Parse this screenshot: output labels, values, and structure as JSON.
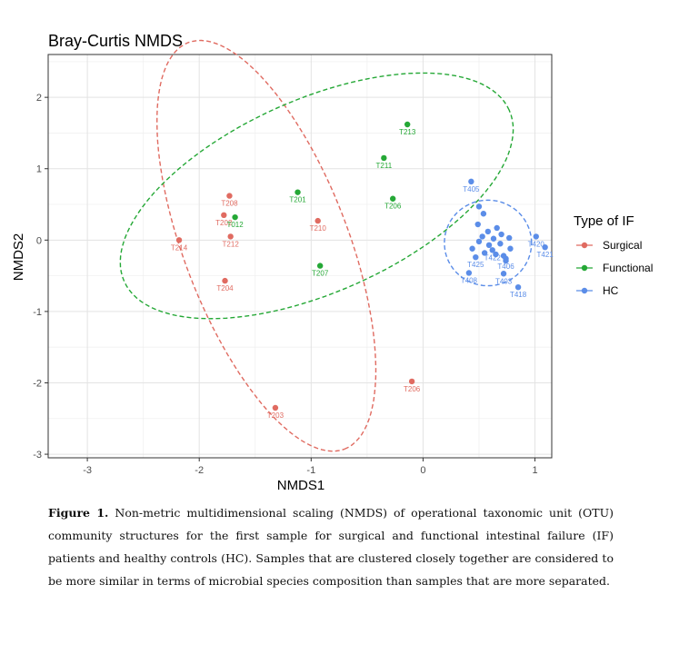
{
  "chart_data": {
    "type": "scatter",
    "title": "Bray-Curtis NMDS",
    "xlabel": "NMDS1",
    "ylabel": "NMDS2",
    "xlim": [
      -3.35,
      1.15
    ],
    "ylim": [
      -3.05,
      2.6
    ],
    "x_ticks": [
      -3,
      -2,
      -1,
      0,
      1
    ],
    "y_ticks": [
      -3,
      -2,
      -1,
      0,
      1,
      2
    ],
    "grid": true,
    "legend_title": "Type of IF",
    "legend_position": "right",
    "series": [
      {
        "name": "Surgical",
        "color": "#e06b61",
        "points": [
          {
            "label": "T208",
            "x": -1.73,
            "y": 0.62
          },
          {
            "label": "T202",
            "x": -1.78,
            "y": 0.35
          },
          {
            "label": "T212",
            "x": -1.72,
            "y": 0.05
          },
          {
            "label": "T214",
            "x": -2.18,
            "y": 0.0
          },
          {
            "label": "T210",
            "x": -0.94,
            "y": 0.27
          },
          {
            "label": "T204",
            "x": -1.77,
            "y": -0.57
          },
          {
            "label": "T206",
            "x": -0.1,
            "y": -1.98
          },
          {
            "label": "T203",
            "x": -1.32,
            "y": -2.35
          }
        ]
      },
      {
        "name": "Functional",
        "color": "#25a836",
        "points": [
          {
            "label": "T213",
            "x": -0.14,
            "y": 1.62
          },
          {
            "label": "T211",
            "x": -0.35,
            "y": 1.15
          },
          {
            "label": "T201",
            "x": -1.12,
            "y": 0.67
          },
          {
            "label": "T206",
            "x": -0.27,
            "y": 0.58
          },
          {
            "label": "T012",
            "x": -1.68,
            "y": 0.32
          },
          {
            "label": "T207",
            "x": -0.92,
            "y": -0.36
          }
        ]
      },
      {
        "name": "HC",
        "color": "#5b8de8",
        "points": [
          {
            "label": "T405",
            "x": 0.43,
            "y": 0.82
          },
          {
            "label": "T420",
            "x": 1.01,
            "y": 0.05
          },
          {
            "label": "T421",
            "x": 1.09,
            "y": -0.1
          },
          {
            "label": "T425",
            "x": 0.47,
            "y": -0.24
          },
          {
            "label": "T403",
            "x": 0.72,
            "y": -0.47
          },
          {
            "label": "T418",
            "x": 0.85,
            "y": -0.66
          },
          {
            "label": "T406",
            "x": 0.74,
            "y": -0.26
          },
          {
            "label": "T422",
            "x": 0.62,
            "y": -0.14
          },
          {
            "label": "T408",
            "x": 0.41,
            "y": -0.46
          },
          {
            "label": "",
            "x": 0.5,
            "y": 0.47
          },
          {
            "label": "",
            "x": 0.54,
            "y": 0.37
          },
          {
            "label": "",
            "x": 0.49,
            "y": 0.22
          },
          {
            "label": "",
            "x": 0.58,
            "y": 0.12
          },
          {
            "label": "",
            "x": 0.53,
            "y": 0.05
          },
          {
            "label": "",
            "x": 0.66,
            "y": 0.17
          },
          {
            "label": "",
            "x": 0.7,
            "y": 0.08
          },
          {
            "label": "",
            "x": 0.63,
            "y": 0.02
          },
          {
            "label": "",
            "x": 0.5,
            "y": -0.02
          },
          {
            "label": "",
            "x": 0.59,
            "y": -0.07
          },
          {
            "label": "",
            "x": 0.77,
            "y": 0.03
          },
          {
            "label": "",
            "x": 0.78,
            "y": -0.12
          },
          {
            "label": "",
            "x": 0.69,
            "y": -0.05
          },
          {
            "label": "",
            "x": 0.55,
            "y": -0.18
          },
          {
            "label": "",
            "x": 0.65,
            "y": -0.2
          },
          {
            "label": "",
            "x": 0.44,
            "y": -0.12
          },
          {
            "label": "",
            "x": 0.72,
            "y": -0.22
          },
          {
            "label": "",
            "x": 0.74,
            "y": -0.29
          }
        ]
      }
    ],
    "ellipses": [
      {
        "group": "Surgical",
        "cx": -1.4,
        "cy": -0.08,
        "rx": 3.05,
        "ry": 1.15,
        "angle_deg": -69
      },
      {
        "group": "Functional",
        "cx": -0.95,
        "cy": 0.62,
        "rx": 2.95,
        "ry": 1.35,
        "angle_deg": 24
      },
      {
        "group": "HC",
        "cx": 0.58,
        "cy": -0.04,
        "rx": 0.61,
        "ry": 0.6,
        "angle_deg": 0
      }
    ]
  },
  "caption": {
    "label": "Figure 1.",
    "text": "Non-metric multidimensional scaling (NMDS) of operational taxonomic unit (OTU) community structures for the first sample for surgical and functional intestinal failure (IF) patients and healthy controls (HC). Samples that are clustered closely together are considered to be more similar in terms of microbial species composition than samples that are more separated."
  }
}
